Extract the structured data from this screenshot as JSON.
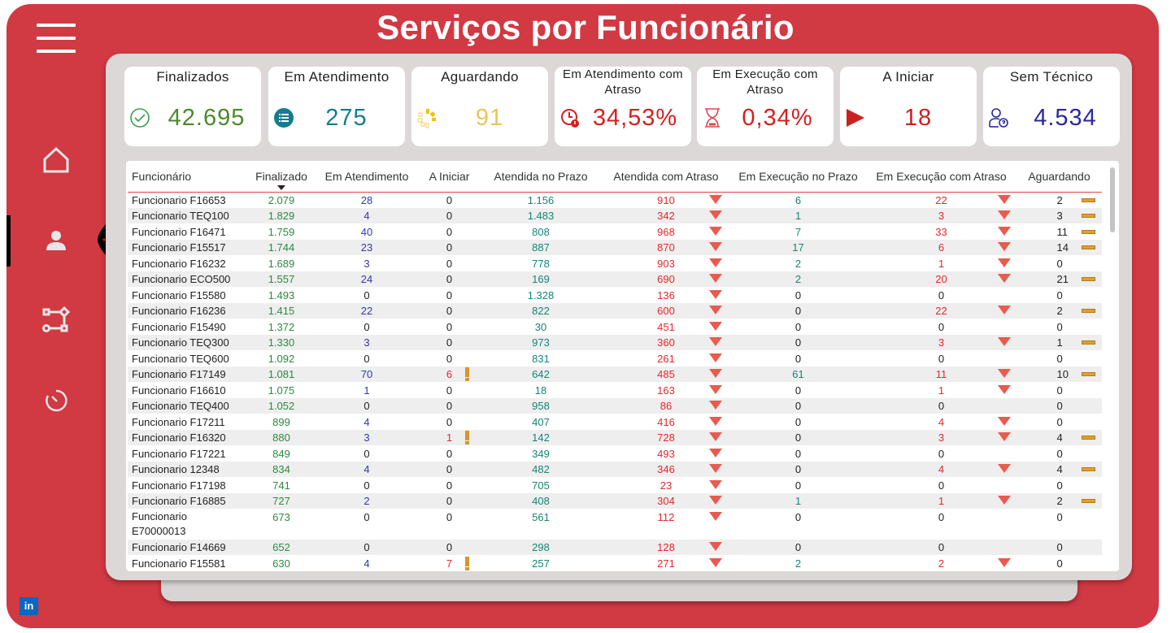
{
  "title": "Serviços por Funcionário",
  "sidebar": {
    "items": [
      "home-icon",
      "user-icon",
      "workflow-icon",
      "timer-icon"
    ],
    "active": "user-icon",
    "linkedin": "in"
  },
  "kpis": [
    {
      "label": "Finalizados",
      "value": "42.695",
      "color": "#4a8a2a",
      "icon": "check-circle-icon"
    },
    {
      "label": "Em Atendimento",
      "value": "275",
      "color": "#137d8f",
      "icon": "list-icon"
    },
    {
      "label": "Aguardando",
      "value": "91",
      "color": "#e8c55a",
      "icon": "loading-icon"
    },
    {
      "label": "Em Atendimento com Atraso",
      "value": "34,53%",
      "color": "#d42020",
      "icon": "clock-alert-icon"
    },
    {
      "label": "Em Execução com Atraso",
      "value": "0,34%",
      "color": "#d42020",
      "icon": "hourglass-icon"
    },
    {
      "label": "A Iniciar",
      "value": "18",
      "color": "#cc2020",
      "icon": "play-icon"
    },
    {
      "label": "Sem Técnico",
      "value": "4.534",
      "color": "#2a2a9a",
      "icon": "user-question-icon"
    }
  ],
  "table": {
    "columns": [
      "Funcionário",
      "Finalizado",
      "Em Atendimento",
      "A Iniciar",
      "Atendida no Prazo",
      "Atendida com Atraso",
      "Em Execução no Prazo",
      "Em Execução com Atraso",
      "Aguardando"
    ],
    "sorted_by": "Finalizado",
    "rows": [
      [
        "Funcionario F16653",
        "2.079",
        "28",
        "0",
        "1.156",
        "910",
        "6",
        "22",
        "2"
      ],
      [
        "Funcionario TEQ100",
        "1.829",
        "4",
        "0",
        "1.483",
        "342",
        "1",
        "3",
        "3"
      ],
      [
        "Funcionario F16471",
        "1.759",
        "40",
        "0",
        "808",
        "968",
        "7",
        "33",
        "11"
      ],
      [
        "Funcionario F15517",
        "1.744",
        "23",
        "0",
        "887",
        "870",
        "17",
        "6",
        "14"
      ],
      [
        "Funcionario F16232",
        "1.689",
        "3",
        "0",
        "778",
        "903",
        "2",
        "1",
        "0"
      ],
      [
        "Funcionario ECO500",
        "1.557",
        "24",
        "0",
        "169",
        "690",
        "2",
        "20",
        "21"
      ],
      [
        "Funcionario F15580",
        "1.493",
        "0",
        "0",
        "1.328",
        "136",
        "0",
        "0",
        "0"
      ],
      [
        "Funcionario F16236",
        "1.415",
        "22",
        "0",
        "822",
        "600",
        "0",
        "22",
        "2"
      ],
      [
        "Funcionario F15490",
        "1.372",
        "0",
        "0",
        "30",
        "451",
        "0",
        "0",
        "0"
      ],
      [
        "Funcionario TEQ300",
        "1.330",
        "3",
        "0",
        "973",
        "360",
        "0",
        "3",
        "1"
      ],
      [
        "Funcionario TEQ600",
        "1.092",
        "0",
        "0",
        "831",
        "261",
        "0",
        "0",
        "0"
      ],
      [
        "Funcionario F17149",
        "1.081",
        "70",
        "6",
        "642",
        "485",
        "61",
        "11",
        "10"
      ],
      [
        "Funcionario F16610",
        "1.075",
        "1",
        "0",
        "18",
        "163",
        "0",
        "1",
        "0"
      ],
      [
        "Funcionario TEQ400",
        "1.052",
        "0",
        "0",
        "958",
        "86",
        "0",
        "0",
        "0"
      ],
      [
        "Funcionario F17211",
        "899",
        "4",
        "0",
        "407",
        "416",
        "0",
        "4",
        "0"
      ],
      [
        "Funcionario F16320",
        "880",
        "3",
        "1",
        "142",
        "728",
        "0",
        "3",
        "4"
      ],
      [
        "Funcionario F17221",
        "849",
        "0",
        "0",
        "349",
        "493",
        "0",
        "0",
        "0"
      ],
      [
        "Funcionario 12348",
        "834",
        "4",
        "0",
        "482",
        "346",
        "0",
        "4",
        "4"
      ],
      [
        "Funcionario F17198",
        "741",
        "0",
        "0",
        "705",
        "23",
        "0",
        "0",
        "0"
      ],
      [
        "Funcionario F16885",
        "727",
        "2",
        "0",
        "408",
        "304",
        "1",
        "1",
        "2"
      ],
      [
        "Funcionario E70000013",
        "673",
        "0",
        "0",
        "561",
        "112",
        "0",
        "0",
        "0"
      ],
      [
        "Funcionario F14669",
        "652",
        "0",
        "0",
        "298",
        "128",
        "0",
        "0",
        "0"
      ],
      [
        "Funcionario F15581",
        "630",
        "4",
        "7",
        "257",
        "271",
        "2",
        "2",
        "0"
      ]
    ]
  }
}
